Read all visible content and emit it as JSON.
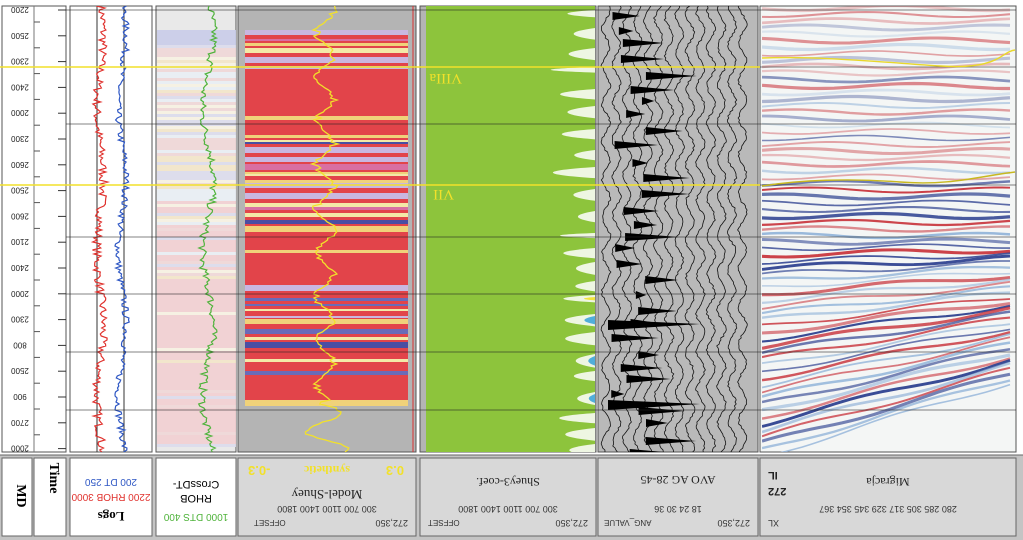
{
  "depth_ticks": [
    "2200",
    "2500",
    "2300",
    "2400",
    "2000",
    "2300",
    "2600",
    "2500",
    "2600",
    "2100",
    "2400",
    "2000",
    "2300",
    "800",
    "2500",
    "900",
    "2700",
    "2000"
  ],
  "footer": {
    "md": "MD",
    "time": "Time",
    "logs": {
      "title": "Logs",
      "rhob_scale": "2200 RHOB 3000",
      "dt_scale": "200   DT   250"
    },
    "crossdt": {
      "scale": "1000 DTS 400",
      "label1": "RHOB",
      "label2": "CrossDT-"
    },
    "model": {
      "ticks": "300   700   1100   1400   1800",
      "axis_label": "OFFSET",
      "corner": "272,350",
      "title": "Model-Shuey",
      "left_value": "-0.3",
      "synth_label": "synthetic",
      "right_value": "0.3"
    },
    "shuey": {
      "ticks": "300   700   1100   1400   1800",
      "axis_label": "OFFSET",
      "corner": "272,350",
      "title": "Shuey3-coef."
    },
    "avo": {
      "ticks": "18    24    30    36",
      "axis_label": "ANG_VALUE",
      "corner": "272,350",
      "title": "AVO AG 28-45"
    },
    "migration": {
      "ticks": "280  285  305  317  329  345  354  367",
      "il": "IL",
      "il_value": "272",
      "xl": "XL",
      "title": "Migracja"
    }
  },
  "horizons": [
    "VIIIa",
    "VII"
  ],
  "colors": {
    "background": "#ffffff",
    "panel_gray": "#b4b4b4",
    "rhob_curve": "#e0312d",
    "dt_curve": "#2d56c4",
    "dts_curve": "#4fb33b",
    "model_red": "#e2444a",
    "shuey_green": "#8dc43c",
    "horizon": "#f2e12a",
    "seismic_red": "#c8323a",
    "seismic_blue": "#2b3f8f"
  }
}
